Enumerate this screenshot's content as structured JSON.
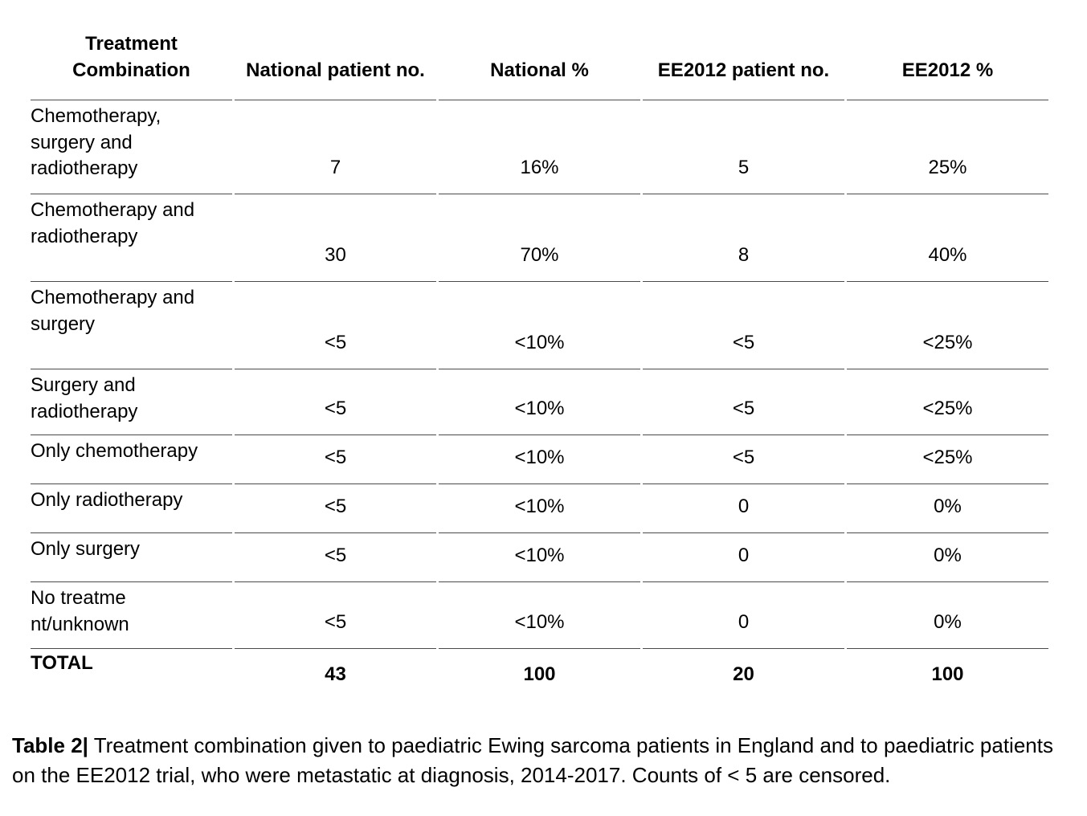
{
  "table": {
    "headers": [
      "Treatment Combination",
      "National patient no.",
      "National %",
      "EE2012 patient no.",
      "EE2012 %"
    ],
    "rows": [
      {
        "label": "Chemotherapy, surgery and radiotherapy",
        "national_no": "7",
        "national_pct": "16%",
        "ee2012_no": "5",
        "ee2012_pct": "25%"
      },
      {
        "label": "Chemotherapy and radiotherapy",
        "national_no": "30",
        "national_pct": "70%",
        "ee2012_no": "8",
        "ee2012_pct": "40%"
      },
      {
        "label": "Chemotherapy and surgery",
        "national_no": "<5",
        "national_pct": "<10%",
        "ee2012_no": "<5",
        "ee2012_pct": "<25%"
      },
      {
        "label": "Surgery and radiotherapy",
        "national_no": "<5",
        "national_pct": "<10%",
        "ee2012_no": "<5",
        "ee2012_pct": "<25%"
      },
      {
        "label": "Only chemotherapy",
        "national_no": "<5",
        "national_pct": "<10%",
        "ee2012_no": "<5",
        "ee2012_pct": "<25%"
      },
      {
        "label": "Only radiotherapy",
        "national_no": "<5",
        "national_pct": "<10%",
        "ee2012_no": "0",
        "ee2012_pct": "0%"
      },
      {
        "label": "Only surgery",
        "national_no": "<5",
        "national_pct": "<10%",
        "ee2012_no": "0",
        "ee2012_pct": "0%"
      },
      {
        "label": "No treatment/unknown",
        "national_no": "<5",
        "national_pct": "<10%",
        "ee2012_no": "0",
        "ee2012_pct": "0%"
      }
    ],
    "total": {
      "label": "TOTAL",
      "national_no": "43",
      "national_pct": "100",
      "ee2012_no": "20",
      "ee2012_pct": "100"
    }
  },
  "caption": {
    "label": "Table 2|",
    "text": " Treatment combination given to paediatric Ewing sarcoma patients in England and to paediatric patients on the EE2012 trial, who were metastatic at diagnosis, 2014-2017. Counts of < 5 are censored."
  }
}
